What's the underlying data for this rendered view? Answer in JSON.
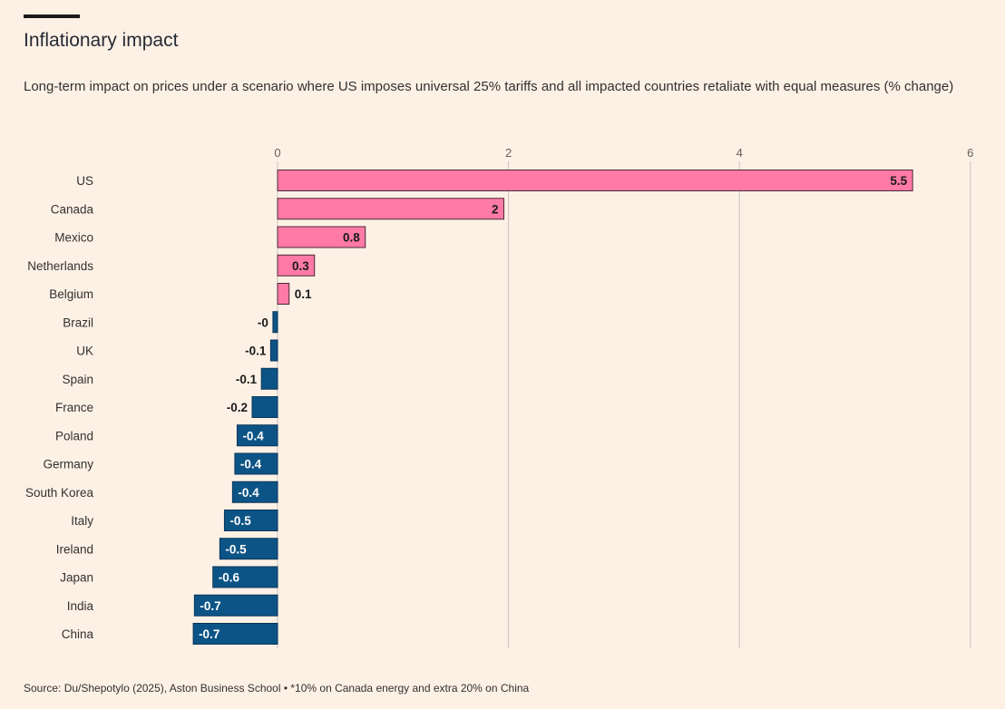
{
  "header": {
    "title": "Inflationary impact",
    "subtitle": "Long-term impact on prices under a scenario where US imposes universal 25% tariffs and all impacted countries retaliate with equal measures (% change)"
  },
  "footer": {
    "source": "Source: Du/Shepotylo (2025), Aston Business School • *10% on Canada energy and extra 20% on China"
  },
  "colors": {
    "positive": "#ff7aa6",
    "negative": "#0d5486",
    "gridline": "#c9c3bd",
    "background": "#fdf1e6"
  },
  "chart_data": {
    "type": "bar",
    "orientation": "horizontal",
    "x_ticks": [
      "0",
      "2",
      "4",
      "6"
    ],
    "xlim": [
      -0.78,
      6
    ],
    "grid": true,
    "categories": [
      "US",
      "Canada",
      "Mexico",
      "Netherlands",
      "Belgium",
      "Brazil",
      "UK",
      "Spain",
      "France",
      "Poland",
      "Germany",
      "South Korea",
      "Italy",
      "Ireland",
      "Japan",
      "India",
      "China"
    ],
    "values": [
      5.5,
      1.96,
      0.76,
      0.32,
      0.1,
      -0.04,
      -0.06,
      -0.14,
      -0.22,
      -0.35,
      -0.37,
      -0.39,
      -0.46,
      -0.5,
      -0.56,
      -0.72,
      -0.73
    ],
    "labels": [
      "5.5",
      "2",
      "0.8",
      "0.3",
      "0.1",
      "-0",
      "-0.1",
      "-0.1",
      "-0.2",
      "-0.4",
      "-0.4",
      "-0.4",
      "-0.5",
      "-0.5",
      "-0.6",
      "-0.7",
      "-0.7"
    ]
  }
}
